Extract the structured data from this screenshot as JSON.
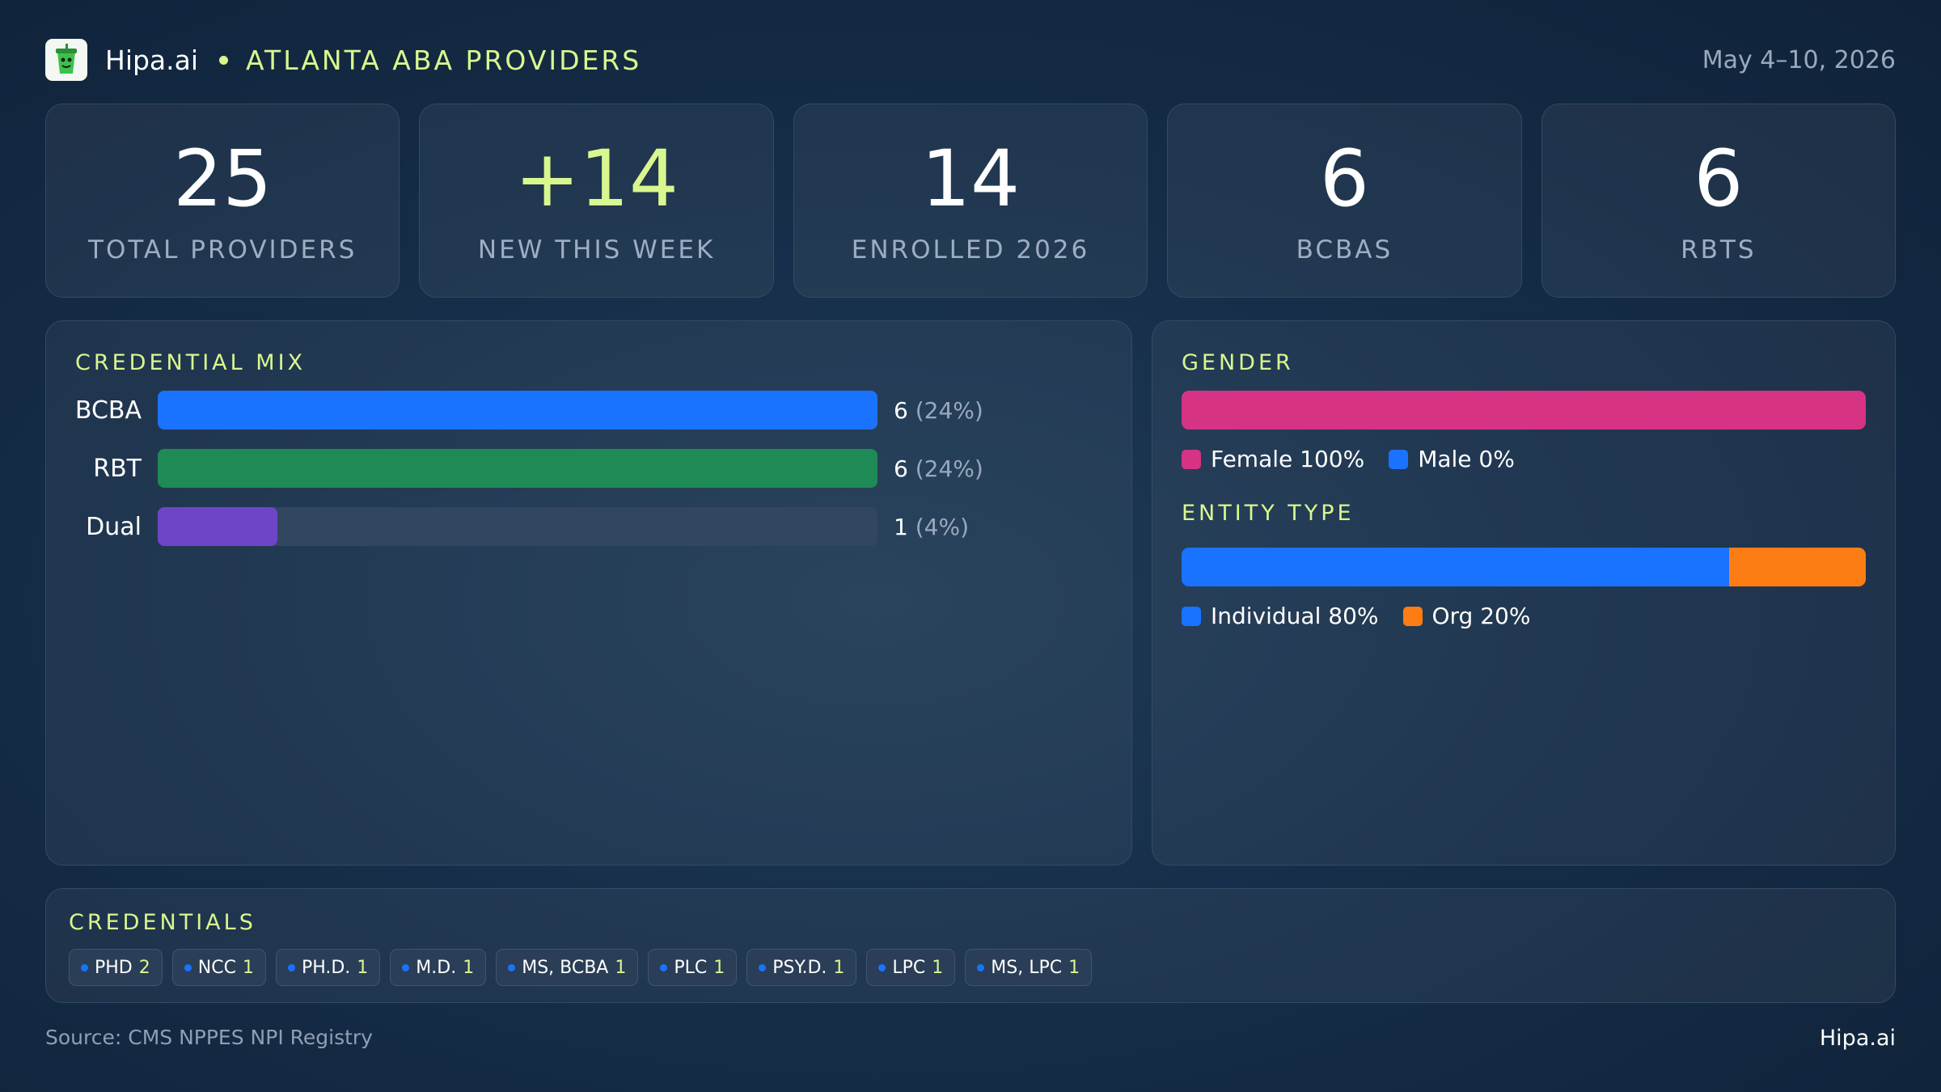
{
  "header": {
    "brand": "Hipa.ai",
    "title": "ATLANTA ABA PROVIDERS",
    "date": "May 4–10, 2026",
    "logo_icon": "cup-logo-icon"
  },
  "stats": [
    {
      "value": "25",
      "label": "TOTAL PROVIDERS"
    },
    {
      "value": "+14",
      "label": "NEW THIS WEEK"
    },
    {
      "value": "14",
      "label": "ENROLLED 2026"
    },
    {
      "value": "6",
      "label": "BCBAS"
    },
    {
      "value": "6",
      "label": "RBTS"
    }
  ],
  "credential_mix": {
    "title": "CREDENTIAL MIX",
    "rows": [
      {
        "label": "BCBA",
        "count": "6",
        "pct": "(24%)"
      },
      {
        "label": "RBT",
        "count": "6",
        "pct": "(24%)"
      },
      {
        "label": "Dual",
        "count": "1",
        "pct": "(4%)"
      }
    ]
  },
  "gender": {
    "title": "GENDER",
    "female_label": "Female 100%",
    "male_label": "Male 0%"
  },
  "entity_type": {
    "title": "ENTITY TYPE",
    "individual_label": "Individual 80%",
    "org_label": "Org 20%"
  },
  "credentials": {
    "title": "CREDENTIALS",
    "chips": [
      {
        "label": "PHD",
        "count": "2"
      },
      {
        "label": "NCC",
        "count": "1"
      },
      {
        "label": "PH.D.",
        "count": "1"
      },
      {
        "label": "M.D.",
        "count": "1"
      },
      {
        "label": "MS, BCBA",
        "count": "1"
      },
      {
        "label": "PLC",
        "count": "1"
      },
      {
        "label": "PSY.D.",
        "count": "1"
      },
      {
        "label": "LPC",
        "count": "1"
      },
      {
        "label": "MS, LPC",
        "count": "1"
      }
    ]
  },
  "footer": {
    "source": "Source: CMS NPPES NPI Registry",
    "brand": "Hipa.ai"
  },
  "chart_data": [
    {
      "type": "bar",
      "title": "CREDENTIAL MIX",
      "categories": [
        "BCBA",
        "RBT",
        "Dual"
      ],
      "values": [
        6,
        6,
        1
      ],
      "xlim": [
        0,
        6
      ]
    },
    {
      "type": "bar",
      "title": "GENDER",
      "categories": [
        "Female",
        "Male"
      ],
      "values": [
        100,
        0
      ]
    },
    {
      "type": "bar",
      "title": "ENTITY TYPE",
      "categories": [
        "Individual",
        "Org"
      ],
      "values": [
        80,
        20
      ]
    }
  ],
  "colors": {
    "bcba": "#1a73ff",
    "rbt": "#1e8a55",
    "dual": "#6f45c8",
    "female": "#d63384",
    "male": "#1a73ff",
    "individual": "#1a73ff",
    "org": "#fb7d13",
    "accent": "#d9f78f"
  }
}
